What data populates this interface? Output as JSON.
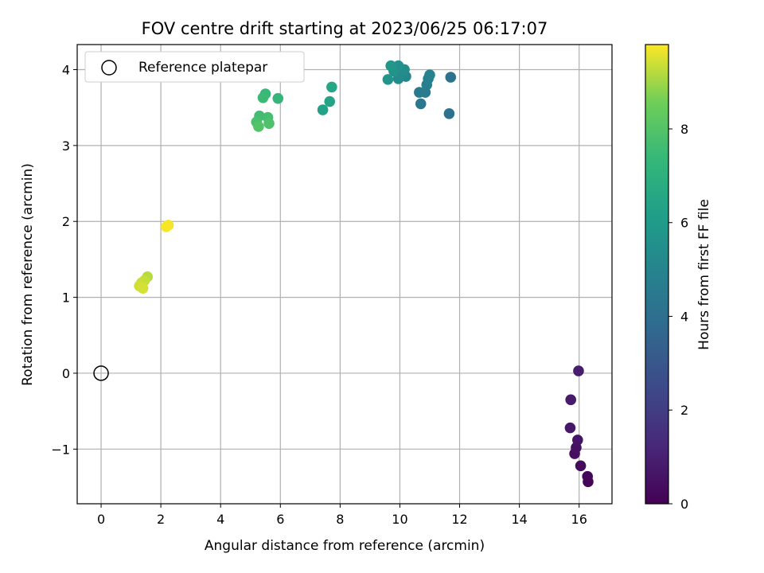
{
  "chart_data": {
    "type": "scatter",
    "title": "FOV centre drift starting at 2023/06/25 06:17:07",
    "xlabel": "Angular distance from reference (arcmin)",
    "ylabel": "Rotation from reference (arcmin)",
    "xlim": [
      -0.8,
      17.1
    ],
    "ylim": [
      -1.72,
      4.33
    ],
    "x_ticks": [
      0,
      2,
      4,
      6,
      8,
      10,
      12,
      14,
      16
    ],
    "y_ticks": [
      -1,
      0,
      1,
      2,
      3,
      4
    ],
    "y_tick_labels": [
      "−1",
      "0",
      "1",
      "2",
      "3",
      "4"
    ],
    "grid": true,
    "colormap": "viridis",
    "colorbar": {
      "label": "Hours from first FF file",
      "range": [
        0,
        9.8
      ],
      "ticks": [
        0,
        2,
        4,
        6,
        8
      ]
    },
    "legend": {
      "position": "top-left",
      "entries": [
        "Reference platepar"
      ]
    },
    "reference_point": {
      "x": 0,
      "y": 0
    },
    "points": [
      {
        "x": 16.3,
        "y": -1.43,
        "h": 0.1
      },
      {
        "x": 16.28,
        "y": -1.36,
        "h": 0.2
      },
      {
        "x": 16.05,
        "y": -1.22,
        "h": 0.3
      },
      {
        "x": 15.85,
        "y": -1.06,
        "h": 0.4
      },
      {
        "x": 15.9,
        "y": -0.98,
        "h": 0.5
      },
      {
        "x": 15.95,
        "y": -0.88,
        "h": 0.6
      },
      {
        "x": 15.7,
        "y": -0.72,
        "h": 0.7
      },
      {
        "x": 15.72,
        "y": -0.35,
        "h": 0.8
      },
      {
        "x": 15.98,
        "y": 0.03,
        "h": 0.9
      },
      {
        "x": 11.65,
        "y": 3.42,
        "h": 4.1
      },
      {
        "x": 11.7,
        "y": 3.9,
        "h": 4.2
      },
      {
        "x": 10.7,
        "y": 3.55,
        "h": 4.4
      },
      {
        "x": 10.65,
        "y": 3.7,
        "h": 4.5
      },
      {
        "x": 10.85,
        "y": 3.7,
        "h": 4.6
      },
      {
        "x": 10.9,
        "y": 3.8,
        "h": 4.7
      },
      {
        "x": 10.95,
        "y": 3.88,
        "h": 4.8
      },
      {
        "x": 11.0,
        "y": 3.93,
        "h": 4.9
      },
      {
        "x": 10.2,
        "y": 3.91,
        "h": 5.1
      },
      {
        "x": 10.05,
        "y": 3.95,
        "h": 5.2
      },
      {
        "x": 9.95,
        "y": 3.88,
        "h": 5.3
      },
      {
        "x": 10.15,
        "y": 4.0,
        "h": 5.4
      },
      {
        "x": 9.95,
        "y": 4.05,
        "h": 5.5
      },
      {
        "x": 9.8,
        "y": 3.98,
        "h": 5.6
      },
      {
        "x": 9.6,
        "y": 3.87,
        "h": 5.7
      },
      {
        "x": 9.7,
        "y": 4.05,
        "h": 5.8
      },
      {
        "x": 7.42,
        "y": 3.47,
        "h": 6.3
      },
      {
        "x": 7.65,
        "y": 3.58,
        "h": 6.4
      },
      {
        "x": 7.72,
        "y": 3.77,
        "h": 6.5
      },
      {
        "x": 5.92,
        "y": 3.62,
        "h": 7.3
      },
      {
        "x": 5.5,
        "y": 3.68,
        "h": 7.4
      },
      {
        "x": 5.42,
        "y": 3.63,
        "h": 7.5
      },
      {
        "x": 5.3,
        "y": 3.39,
        "h": 7.6
      },
      {
        "x": 5.58,
        "y": 3.37,
        "h": 7.7
      },
      {
        "x": 5.2,
        "y": 3.31,
        "h": 7.8
      },
      {
        "x": 5.62,
        "y": 3.29,
        "h": 7.9
      },
      {
        "x": 5.27,
        "y": 3.25,
        "h": 8.0
      },
      {
        "x": 1.55,
        "y": 1.27,
        "h": 9.2
      },
      {
        "x": 1.45,
        "y": 1.22,
        "h": 9.3
      },
      {
        "x": 1.35,
        "y": 1.19,
        "h": 9.35
      },
      {
        "x": 1.28,
        "y": 1.15,
        "h": 9.4
      },
      {
        "x": 1.4,
        "y": 1.12,
        "h": 9.45
      },
      {
        "x": 2.25,
        "y": 1.95,
        "h": 9.7
      },
      {
        "x": 2.18,
        "y": 1.93,
        "h": 9.75
      }
    ]
  }
}
